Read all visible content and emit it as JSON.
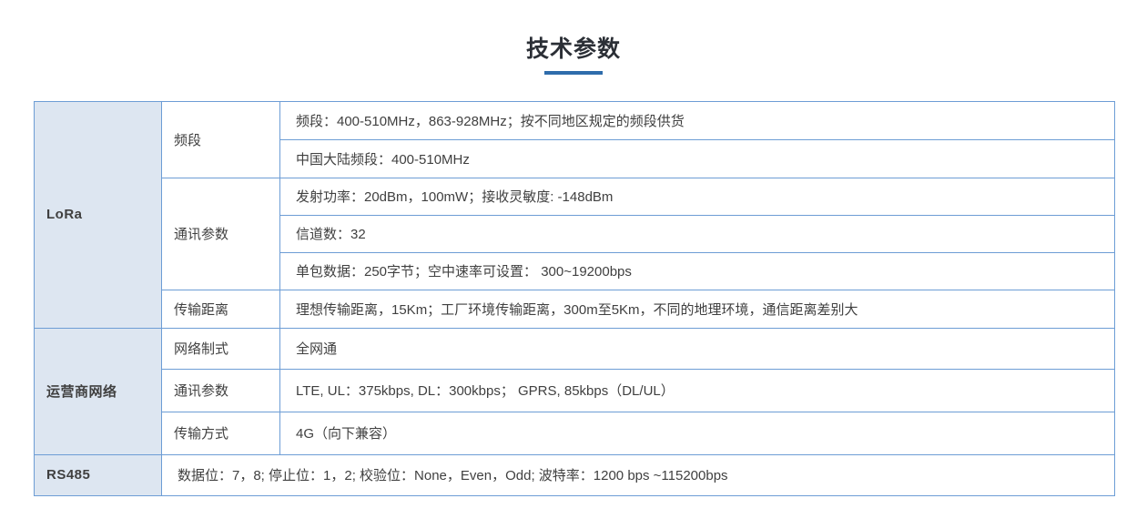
{
  "page": {
    "title": "技术参数",
    "accent_color": "#2e6cab",
    "table_border_color": "#6d9dd5",
    "category_bg_color": "#dde6f1"
  },
  "table": {
    "sections": [
      {
        "category": "LoRa",
        "groups": [
          {
            "label": "频段",
            "values": [
              "频段：400-510MHz，863-928MHz；按不同地区规定的频段供货",
              "中国大陆频段：400-510MHz"
            ]
          },
          {
            "label": "通讯参数",
            "values": [
              "发射功率：20dBm，100mW；接收灵敏度: -148dBm",
              "信道数：32",
              "单包数据：250字节；空中速率可设置： 300~19200bps"
            ]
          },
          {
            "label": "传输距离",
            "values": [
              "理想传输距离，15Km；工厂环境传输距离，300m至5Km，不同的地理环境，通信距离差别大"
            ]
          }
        ]
      },
      {
        "category": "运营商网络",
        "groups": [
          {
            "label": "网络制式",
            "values": [
              "全网通"
            ]
          },
          {
            "label": "通讯参数",
            "values": [
              "LTE, UL：375kbps, DL：300kbps； GPRS, 85kbps（DL/UL）"
            ]
          },
          {
            "label": "传输方式",
            "values": [
              "4G（向下兼容）"
            ]
          }
        ]
      },
      {
        "category": "RS485",
        "full_row_value": "数据位：7，8; 停止位：1，2; 校验位：None，Even，Odd; 波特率：1200 bps ~115200bps"
      }
    ]
  }
}
